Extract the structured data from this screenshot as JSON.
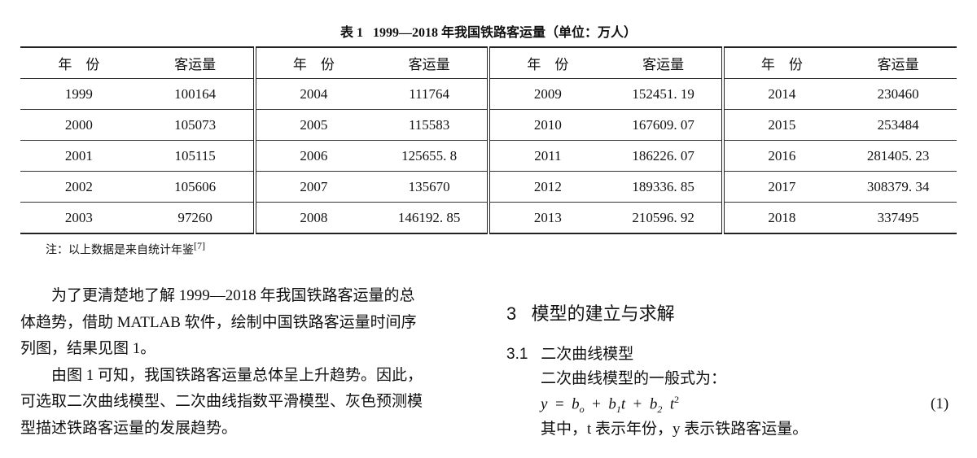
{
  "caption": {
    "label": "表 1",
    "text": "1999—2018 年我国铁路客运量（单位：万人）"
  },
  "table": {
    "header": [
      "年　份",
      "客运量"
    ],
    "groups": [
      {
        "rows": [
          [
            "1999",
            "100164"
          ],
          [
            "2000",
            "105073"
          ],
          [
            "2001",
            "105115"
          ],
          [
            "2002",
            "105606"
          ],
          [
            "2003",
            "97260"
          ]
        ]
      },
      {
        "rows": [
          [
            "2004",
            "111764"
          ],
          [
            "2005",
            "115583"
          ],
          [
            "2006",
            "125655. 8"
          ],
          [
            "2007",
            "135670"
          ],
          [
            "2008",
            "146192. 85"
          ]
        ]
      },
      {
        "rows": [
          [
            "2009",
            "152451. 19"
          ],
          [
            "2010",
            "167609. 07"
          ],
          [
            "2011",
            "186226. 07"
          ],
          [
            "2012",
            "189336. 85"
          ],
          [
            "2013",
            "210596. 92"
          ]
        ]
      },
      {
        "rows": [
          [
            "2014",
            "230460"
          ],
          [
            "2015",
            "253484"
          ],
          [
            "2016",
            "281405. 23"
          ],
          [
            "2017",
            "308379. 34"
          ],
          [
            "2018",
            "337495"
          ]
        ]
      }
    ]
  },
  "note": {
    "text": "注：以上数据是来自统计年鉴",
    "ref": "[7]"
  },
  "left_paragraphs": [
    [
      "　　为了更清楚地了解 1999—2018 年我国铁路客运量的总",
      "体趋势，借助 MATLAB 软件，绘制中国铁路客运量时间序",
      "列图，结果见图 1。"
    ],
    [
      "　　由图 1 可知，我国铁路客运量总体呈上升趋势。因此，",
      "可选取二次曲线模型、二次曲线指数平滑模型、灰色预测模",
      "型描述铁路客运量的发展趋势。"
    ]
  ],
  "section": {
    "number": "3",
    "title": "模型的建立与求解"
  },
  "subsection": {
    "number": "3.1",
    "title": "二次曲线模型"
  },
  "intro": "二次曲线模型的一般式为：",
  "equation": {
    "lhs": "y",
    "eq": "=",
    "op": "+",
    "terms": [
      {
        "base": "b",
        "sub": "o"
      },
      {
        "base": "b",
        "sub": "1",
        "var": "t"
      },
      {
        "base": "b",
        "sub": "2",
        "var": "t",
        "sup": "2"
      }
    ],
    "number": "(1)"
  },
  "explanation": "其中，t 表示年份，y 表示铁路客运量。"
}
